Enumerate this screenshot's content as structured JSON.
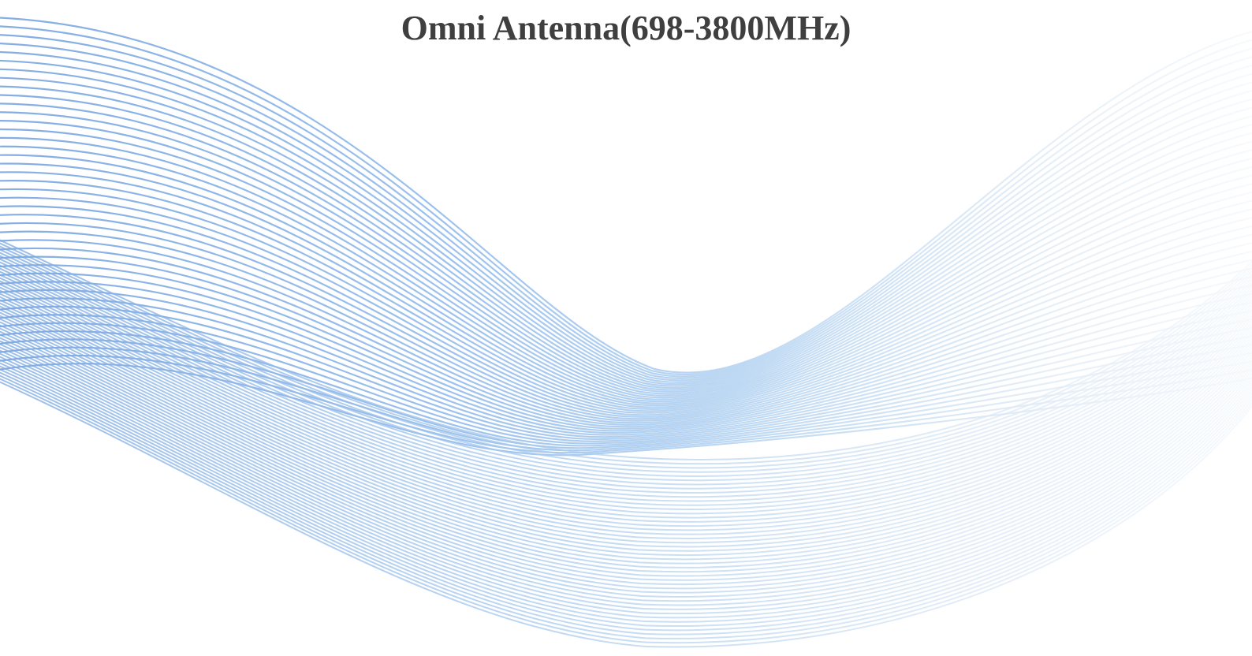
{
  "slide": {
    "title": "Omni Antenna(698-3800MHz)"
  },
  "background": {
    "decoration": "blue-wave-lines",
    "wave_color_strong": "#6f9fde",
    "wave_color_light": "#a9cdf0",
    "wave_color_faint": "#dde9f4",
    "title_color": "#3f3f3f"
  }
}
